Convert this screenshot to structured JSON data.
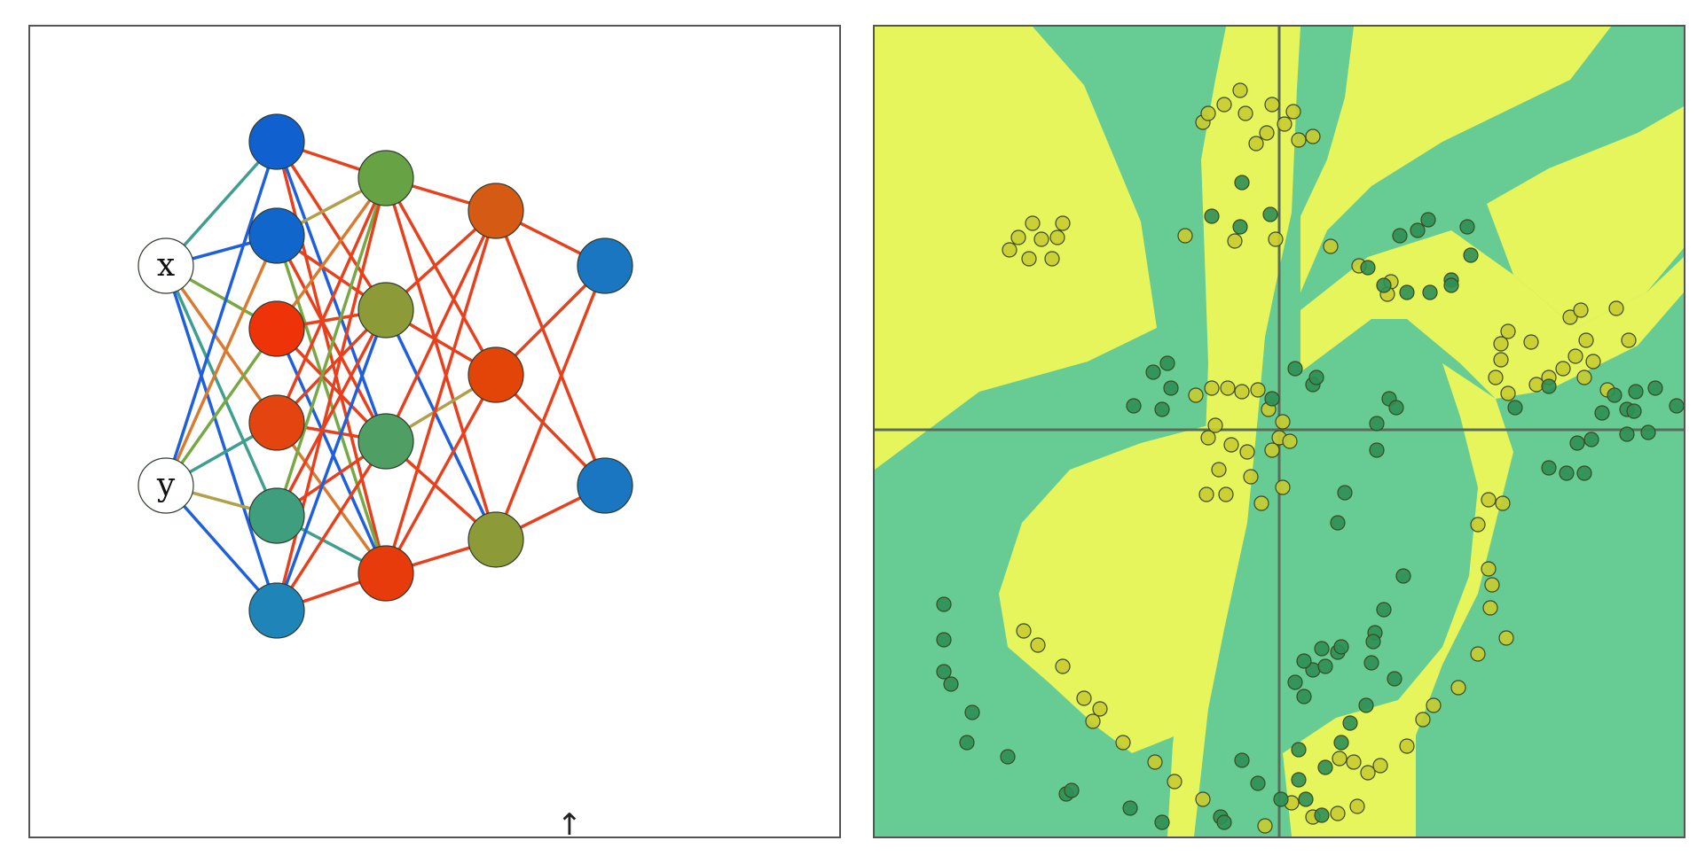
{
  "network": {
    "input_labels": [
      "x",
      "y"
    ],
    "layers": [
      [
        "#ffffff",
        "#ffffff"
      ],
      [
        "#1160d0",
        "#1166cc",
        "#ee3308",
        "#e34410",
        "#3f9e7e",
        "#1f85b8"
      ],
      [
        "#67a344",
        "#8c9a38",
        "#4f9e63",
        "#e83b0c"
      ],
      [
        "#d55b14",
        "#e34408",
        "#8c9a38"
      ],
      [
        "#1a76c1",
        "#1a76c1"
      ]
    ],
    "edge_palette": [
      "#e8401c",
      "#1f5fdd",
      "#3f9e8e",
      "#78a843",
      "#b0a04a",
      "#d97a30"
    ],
    "cursor_glyph": "↑",
    "colors": {
      "node_stroke": "#2e3b2e",
      "input_fill": "#ffffff"
    }
  },
  "boundary": {
    "colors": {
      "region_a": "#e6f55c",
      "region_b": "#66cc94",
      "axis": "#5a6d5a",
      "point_a_fill": "#c8cc30",
      "point_b_fill": "#2e8f55",
      "point_stroke": "#3a4a20"
    },
    "classes": [
      "yellow",
      "green"
    ],
    "x_range": [
      -1,
      1
    ],
    "y_range": [
      -1,
      1
    ]
  }
}
